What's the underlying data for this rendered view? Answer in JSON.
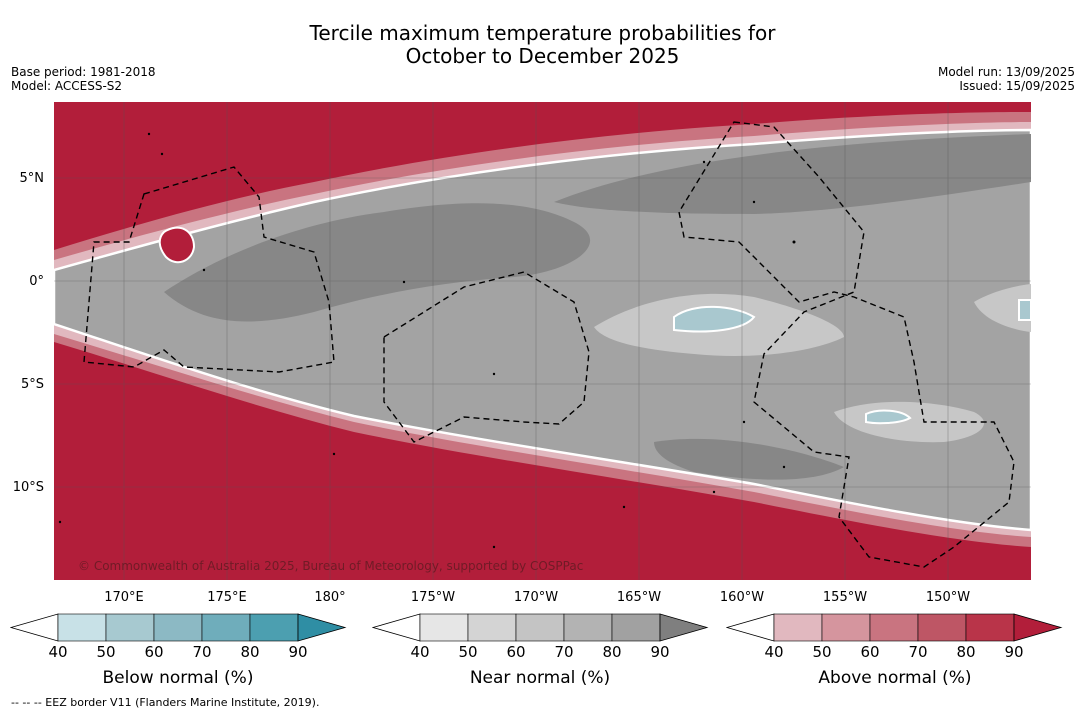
{
  "title": {
    "line1": "Tercile maximum temperature probabilities for",
    "line2": "October to December 2025"
  },
  "meta": {
    "base_period": "Base period: 1981-2018",
    "model": "Model: ACCESS-S2",
    "model_run": "Model run: 13/09/2025",
    "issued": "Issued: 15/09/2025"
  },
  "map": {
    "credit": "© Commonwealth of Australia 2025, Bureau of Meteorology, supported by COSPPac",
    "lat_labels": [
      "5°N",
      "0°",
      "5°S",
      "10°S"
    ],
    "lon_labels": [
      "170°E",
      "175°E",
      "180°",
      "175°W",
      "170°W",
      "165°W",
      "160°W",
      "155°W",
      "150°W"
    ],
    "colors": {
      "above_strong": "#b21e3a",
      "near_dark": "#878787",
      "near_mid": "#a3a3a3",
      "near_light": "#c7c7c7",
      "below_light": "#a9c8cf"
    }
  },
  "colorbars": [
    {
      "name": "below",
      "title": "Below normal (%)",
      "ticks": [
        "40",
        "50",
        "60",
        "70",
        "80",
        "90"
      ],
      "colors": [
        "#ffffff",
        "#c8e1e7",
        "#a7c9d0",
        "#8cb9c4",
        "#6fadbb",
        "#4c9fb0",
        "#2f8ea4"
      ]
    },
    {
      "name": "near",
      "title": "Near normal (%)",
      "ticks": [
        "40",
        "50",
        "60",
        "70",
        "80",
        "90"
      ],
      "colors": [
        "#ffffff",
        "#e6e6e6",
        "#d4d4d4",
        "#c4c4c4",
        "#b3b3b3",
        "#a1a1a1",
        "#7f7f7f"
      ]
    },
    {
      "name": "above",
      "title": "Above normal (%)",
      "ticks": [
        "40",
        "50",
        "60",
        "70",
        "80",
        "90"
      ],
      "colors": [
        "#ffffff",
        "#e1b8bf",
        "#d5959e",
        "#c97480",
        "#be5665",
        "#b93449",
        "#b21e3a"
      ]
    }
  ],
  "footer": "-- -- -- EEZ border V11 (Flanders Marine Institute, 2019)."
}
